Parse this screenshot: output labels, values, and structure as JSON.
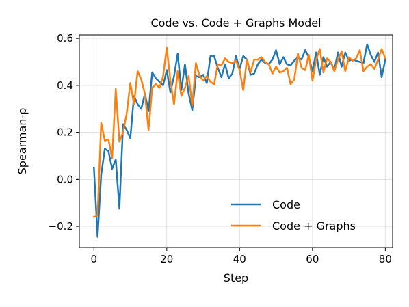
{
  "chart_data": {
    "type": "line",
    "title": "Code vs. Code + Graphs Model",
    "xlabel": "Step",
    "ylabel": "Spearman-ρ",
    "xlim": [
      -4,
      82
    ],
    "ylim": [
      -0.29,
      0.615
    ],
    "xticks": [
      0,
      20,
      40,
      60,
      80
    ],
    "yticks": [
      -0.2,
      0.0,
      0.2,
      0.4,
      0.6
    ],
    "ytick_labels": [
      "−0.2",
      "0.0",
      "0.2",
      "0.4",
      "0.6"
    ],
    "grid": true,
    "legend_position": "lower-right",
    "series": [
      {
        "name": "Code",
        "color": "#1f77b4",
        "x": [
          0,
          1,
          2,
          3,
          4,
          5,
          6,
          7,
          8,
          9,
          10,
          11,
          12,
          13,
          14,
          15,
          16,
          17,
          18,
          19,
          20,
          21,
          22,
          23,
          24,
          25,
          26,
          27,
          28,
          29,
          30,
          31,
          32,
          33,
          34,
          35,
          36,
          37,
          38,
          39,
          40,
          41,
          42,
          43,
          44,
          45,
          46,
          47,
          48,
          49,
          50,
          51,
          52,
          53,
          54,
          55,
          56,
          57,
          58,
          59,
          60,
          61,
          62,
          63,
          64,
          65,
          66,
          67,
          68,
          69,
          70,
          71,
          72,
          73,
          74,
          75,
          76,
          77,
          78,
          79,
          80
        ],
        "values": [
          0.05,
          -0.245,
          0.02,
          0.13,
          0.12,
          0.045,
          0.085,
          -0.125,
          0.235,
          0.21,
          0.175,
          0.355,
          0.32,
          0.3,
          0.365,
          0.29,
          0.455,
          0.43,
          0.415,
          0.4,
          0.465,
          0.37,
          0.44,
          0.535,
          0.38,
          0.49,
          0.365,
          0.295,
          0.44,
          0.435,
          0.445,
          0.41,
          0.525,
          0.525,
          0.475,
          0.435,
          0.49,
          0.43,
          0.45,
          0.525,
          0.47,
          0.525,
          0.51,
          0.445,
          0.45,
          0.49,
          0.51,
          0.495,
          0.49,
          0.51,
          0.55,
          0.49,
          0.52,
          0.49,
          0.485,
          0.505,
          0.52,
          0.51,
          0.55,
          0.52,
          0.46,
          0.54,
          0.445,
          0.52,
          0.48,
          0.5,
          0.465,
          0.54,
          0.48,
          0.54,
          0.505,
          0.51,
          0.505,
          0.5,
          0.495,
          0.575,
          0.53,
          0.5,
          0.54,
          0.435,
          0.51
        ]
      },
      {
        "name": "Code + Graphs",
        "color": "#ff7f0e",
        "x": [
          0,
          1,
          2,
          3,
          4,
          5,
          6,
          7,
          8,
          9,
          10,
          11,
          12,
          13,
          14,
          15,
          16,
          17,
          18,
          19,
          20,
          21,
          22,
          23,
          24,
          25,
          26,
          27,
          28,
          29,
          30,
          31,
          32,
          33,
          34,
          35,
          36,
          37,
          38,
          39,
          40,
          41,
          42,
          43,
          44,
          45,
          46,
          47,
          48,
          49,
          50,
          51,
          52,
          53,
          54,
          55,
          56,
          57,
          58,
          59,
          60,
          61,
          62,
          63,
          64,
          65,
          66,
          67,
          68,
          69,
          70,
          71,
          72,
          73,
          74,
          75,
          76,
          77,
          78,
          79,
          80
        ],
        "values": [
          -0.16,
          -0.155,
          0.24,
          0.165,
          0.17,
          0.09,
          0.385,
          0.16,
          0.2,
          0.28,
          0.41,
          0.32,
          0.46,
          0.425,
          0.365,
          0.21,
          0.39,
          0.405,
          0.39,
          0.44,
          0.56,
          0.42,
          0.32,
          0.46,
          0.355,
          0.39,
          0.44,
          0.315,
          0.495,
          0.44,
          0.42,
          0.44,
          0.415,
          0.405,
          0.49,
          0.485,
          0.515,
          0.5,
          0.495,
          0.505,
          0.465,
          0.38,
          0.51,
          0.455,
          0.51,
          0.51,
          0.52,
          0.5,
          0.49,
          0.45,
          0.48,
          0.455,
          0.46,
          0.475,
          0.405,
          0.425,
          0.535,
          0.475,
          0.465,
          0.53,
          0.42,
          0.51,
          0.555,
          0.455,
          0.515,
          0.5,
          0.46,
          0.51,
          0.545,
          0.46,
          0.52,
          0.505,
          0.515,
          0.55,
          0.46,
          0.48,
          0.49,
          0.47,
          0.51,
          0.555,
          0.515
        ]
      }
    ]
  }
}
